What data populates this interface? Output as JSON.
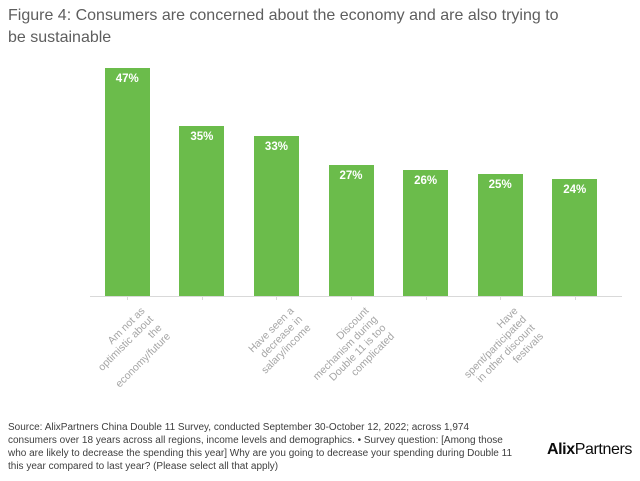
{
  "title": "Figure 4: Consumers are concerned about the economy and are also trying to\nbe sustainable",
  "chart_data": {
    "type": "bar",
    "categories": [
      "Am not as\noptimistic about\nthe\neconomy/future",
      "",
      "Have seen a\ndecrease in\nsalary/income",
      "Discount\nmechanism during\nDouble 11 is too\ncomplicated",
      "",
      "Have\nspent/participated\nin other discount\nfestivals",
      ""
    ],
    "values": [
      47,
      35,
      33,
      27,
      26,
      25,
      24
    ],
    "value_labels": [
      "47%",
      "35%",
      "33%",
      "27%",
      "26%",
      "25%",
      "24%"
    ],
    "bar_color": "#6bbc4b",
    "value_label_color": "#ffffff",
    "axis_line_color": "#d9d9d9",
    "category_label_color": "#a5a5a5",
    "ylim": [
      0,
      50
    ],
    "xlabel": "",
    "ylabel": "",
    "grid": false,
    "legend": false
  },
  "source": "Source: AlixPartners China Double 11 Survey, conducted September 30-October 12, 2022; across 1,974\nconsumers over 18 years across all regions, income levels and demographics. • Survey question: [Among those\nwho are likely to decrease the spending this year] Why are you going to decrease your spending during Double 11\nthis year compared to last year? (Please select all that apply)",
  "logo": {
    "bold": "Alix",
    "regular": "Partners"
  }
}
